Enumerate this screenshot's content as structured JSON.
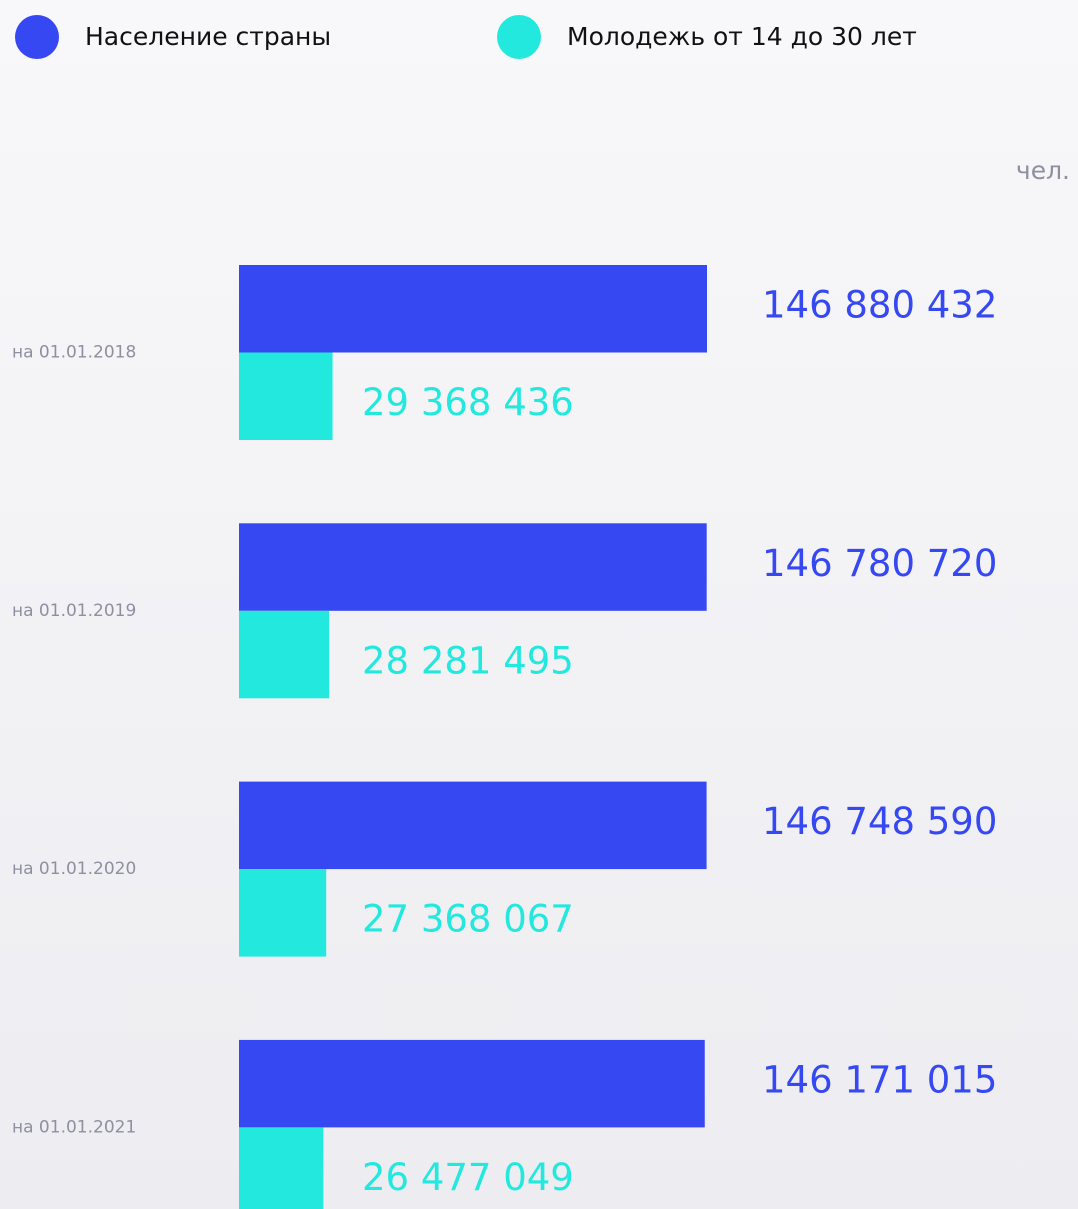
{
  "chart_data": {
    "type": "bar",
    "orientation": "horizontal",
    "unit": "чел.",
    "categories": [
      "на 01.01.2018",
      "на 01.01.2019",
      "на 01.01.2020",
      "на 01.01.2021"
    ],
    "series": [
      {
        "name": "Население страны",
        "color": "#3548f2",
        "values": [
          146880432,
          146780720,
          146748590,
          146171015
        ],
        "value_labels": [
          "146 880 432",
          "146 780 720",
          "146 748 590",
          "146 171 015"
        ]
      },
      {
        "name": "Молодежь от 14 до 30 лет",
        "color": "#22e8de",
        "values": [
          29368436,
          28281495,
          27368067,
          26477049
        ],
        "value_labels": [
          "29 368 436",
          "28 281 495",
          "27 368 067",
          "26 477 049"
        ]
      }
    ]
  }
}
